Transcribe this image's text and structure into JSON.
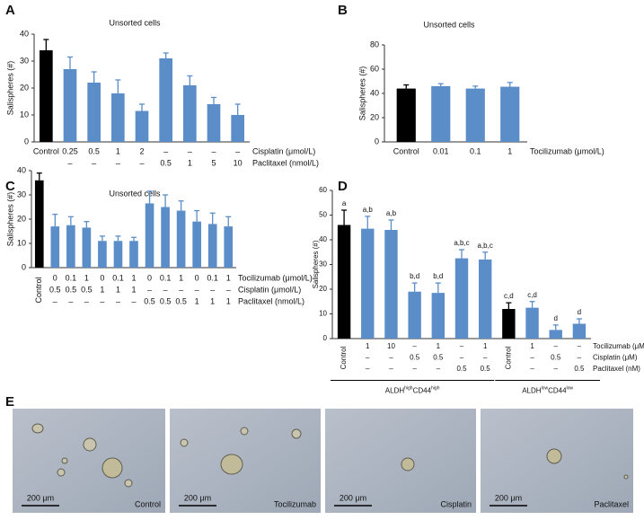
{
  "chart_data": [
    {
      "type": "bar",
      "panel": "A",
      "title": "Unsorted cells",
      "y_label": "Salispheres (#)",
      "ylim": [
        0,
        40
      ],
      "yticks": [
        0,
        10,
        20,
        30,
        40
      ],
      "values": [
        34,
        27,
        22,
        18,
        11.5,
        31,
        21,
        14,
        10
      ],
      "errors": [
        4,
        4.5,
        4,
        5,
        2.5,
        2,
        3.5,
        2.5,
        4
      ],
      "colors": [
        "#000000",
        "#5b8dc9",
        "#5b8dc9",
        "#5b8dc9",
        "#5b8dc9",
        "#5b8dc9",
        "#5b8dc9",
        "#5b8dc9",
        "#5b8dc9"
      ],
      "label_rows": [
        {
          "name": "Cisplatin (μmol/L)",
          "labels": [
            "Control",
            "0.25",
            "0.5",
            "1",
            "2",
            "–",
            "–",
            "–",
            "–"
          ]
        },
        {
          "name": "Paclitaxel (nmol/L)",
          "labels": [
            null,
            "–",
            "–",
            "–",
            "–",
            "0.5",
            "1",
            "5",
            "10"
          ]
        }
      ]
    },
    {
      "type": "bar",
      "panel": "B",
      "title": "Unsorted cells",
      "y_label": "Salispheres (#)",
      "ylim": [
        0,
        80
      ],
      "yticks": [
        0,
        20,
        40,
        60,
        80
      ],
      "values": [
        44,
        46,
        44,
        45.5
      ],
      "errors": [
        3,
        2,
        2,
        3.5
      ],
      "colors": [
        "#000000",
        "#5b8dc9",
        "#5b8dc9",
        "#5b8dc9"
      ],
      "label_rows": [
        {
          "name": "Tocilizumab (μmol/L)",
          "labels": [
            "Control",
            "0.01",
            "0.1",
            "1"
          ]
        }
      ]
    },
    {
      "type": "bar",
      "panel": "C",
      "title": "Unsorted cells",
      "y_label": "Salispheres (#)",
      "ylim": [
        0,
        40
      ],
      "yticks": [
        0,
        10,
        20,
        30,
        40
      ],
      "values": [
        36,
        17,
        17.5,
        16.5,
        11,
        11,
        11,
        26.5,
        25,
        23.5,
        19,
        18,
        17
      ],
      "errors": [
        3,
        5,
        3.5,
        2.5,
        2,
        2,
        1.5,
        5,
        5,
        4,
        4.5,
        4.5,
        4
      ],
      "colors": [
        "#000000",
        "#5b8dc9",
        "#5b8dc9",
        "#5b8dc9",
        "#5b8dc9",
        "#5b8dc9",
        "#5b8dc9",
        "#5b8dc9",
        "#5b8dc9",
        "#5b8dc9",
        "#5b8dc9",
        "#5b8dc9",
        "#5b8dc9"
      ],
      "label_rows": [
        {
          "name": "Tocilizumab (μmol/L)",
          "labels": [
            "Control",
            "0",
            "0.1",
            "1",
            "0",
            "0.1",
            "1",
            "0",
            "0.1",
            "1",
            "0",
            "0.1",
            "1"
          ]
        },
        {
          "name": "Cisplatin (μmol/L)",
          "labels": [
            null,
            "0.5",
            "0.5",
            "0.5",
            "1",
            "1",
            "1",
            "–",
            "–",
            "–",
            "–",
            "–",
            "–"
          ]
        },
        {
          "name": "Paclitaxel (nmol/L)",
          "labels": [
            null,
            "–",
            "–",
            "–",
            "–",
            "–",
            "–",
            "0.5",
            "0.5",
            "0.5",
            "1",
            "1",
            "1"
          ]
        }
      ]
    },
    {
      "type": "bar",
      "panel": "D",
      "y_label": "Salispheres (#)",
      "ylim": [
        0,
        60
      ],
      "yticks": [
        0,
        10,
        20,
        30,
        40,
        50,
        60
      ],
      "values": [
        46,
        44.5,
        44,
        19,
        18.5,
        32.5,
        32,
        12,
        12.5,
        3.5,
        6
      ],
      "errors": [
        6,
        5,
        4,
        3.5,
        4,
        3.5,
        3,
        2.5,
        2.5,
        2,
        2
      ],
      "annotations": [
        "a",
        "a,b",
        "a,b",
        "b,d",
        "b,d",
        "a,b,c",
        "a,b,c",
        "c,d",
        "c,d",
        "d",
        "d"
      ],
      "colors": [
        "#000000",
        "#5b8dc9",
        "#5b8dc9",
        "#5b8dc9",
        "#5b8dc9",
        "#5b8dc9",
        "#5b8dc9",
        "#000000",
        "#5b8dc9",
        "#5b8dc9",
        "#5b8dc9"
      ],
      "label_rows": [
        {
          "name": "Tocilizumab (μM)",
          "labels": [
            "Control",
            "1",
            "10",
            "–",
            "1",
            "–",
            "1",
            "Control",
            "1",
            "–",
            "–"
          ]
        },
        {
          "name": "Cisplatin (μM)",
          "labels": [
            null,
            "–",
            "–",
            "0.5",
            "0.5",
            "–",
            "–",
            null,
            "–",
            "0.5",
            "–"
          ]
        },
        {
          "name": "Paclitaxel (nM)",
          "labels": [
            null,
            "–",
            "–",
            "–",
            "–",
            "0.5",
            "0.5",
            null,
            "–",
            "–",
            "0.5"
          ]
        }
      ],
      "groups": [
        {
          "segments": [
            "ALDH",
            "high",
            "CD44",
            "high"
          ],
          "span": [
            0,
            6
          ]
        },
        {
          "segments": [
            "ALDH",
            "low",
            "CD44",
            "low"
          ],
          "span": [
            7,
            10
          ]
        }
      ]
    }
  ],
  "panel_e": {
    "label": "E",
    "images": [
      {
        "caption": "Control",
        "scale": "200 μm"
      },
      {
        "caption": "Tocilizumab",
        "scale": "200 μm"
      },
      {
        "caption": "Cisplatin",
        "scale": "200 μm"
      },
      {
        "caption": "Paclitaxel",
        "scale": "200 μm"
      }
    ]
  }
}
